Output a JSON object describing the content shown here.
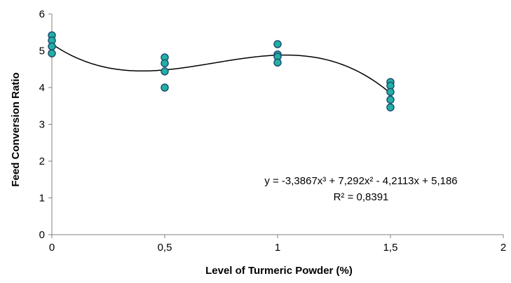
{
  "chart_data": {
    "type": "scatter",
    "title": "",
    "xlabel": "Level of Turmeric Powder (%)",
    "ylabel": "Feed Conversion Ratio",
    "xlim": [
      0,
      2
    ],
    "ylim": [
      0,
      6
    ],
    "x_ticks": [
      "0",
      "0,5",
      "1",
      "1,5",
      "2"
    ],
    "y_ticks": [
      "0",
      "1",
      "2",
      "3",
      "4",
      "5",
      "6"
    ],
    "grid": false,
    "legend": "none",
    "series": [
      {
        "points": [
          {
            "x": 0,
            "y": 5.42
          },
          {
            "x": 0,
            "y": 5.28
          },
          {
            "x": 0,
            "y": 5.12
          },
          {
            "x": 0,
            "y": 4.93
          },
          {
            "x": 0.5,
            "y": 4.82
          },
          {
            "x": 0.5,
            "y": 4.66
          },
          {
            "x": 0.5,
            "y": 4.44
          },
          {
            "x": 0.5,
            "y": 4.0
          },
          {
            "x": 1,
            "y": 5.18
          },
          {
            "x": 1,
            "y": 4.9
          },
          {
            "x": 1,
            "y": 4.84
          },
          {
            "x": 1,
            "y": 4.68
          },
          {
            "x": 1.5,
            "y": 4.15
          },
          {
            "x": 1.5,
            "y": 4.05
          },
          {
            "x": 1.5,
            "y": 3.88
          },
          {
            "x": 1.5,
            "y": 3.67
          },
          {
            "x": 1.5,
            "y": 3.46
          }
        ],
        "marker_fill": "#20b2a0",
        "marker_edge": "#1f4e79"
      }
    ],
    "trendline": {
      "type": "polynomial",
      "order": 3,
      "coefficients": [
        -3.3867,
        7.292,
        -4.2113,
        5.186
      ],
      "color": "#000000"
    },
    "annotations": {
      "equation": "y = -3,3867x³ + 7,292x² - 4,2113x + 5,186",
      "r_squared": "R² = 0,8391"
    }
  }
}
